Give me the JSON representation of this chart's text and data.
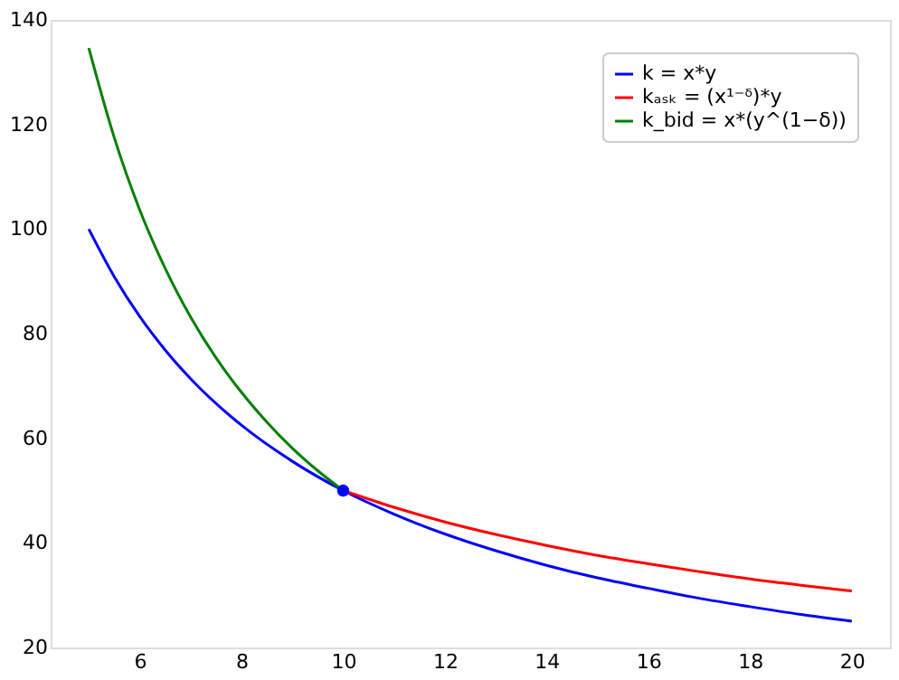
{
  "chart_data": {
    "type": "line",
    "xlim": [
      4.25,
      20.75
    ],
    "xticks": [
      6,
      8,
      10,
      12,
      14,
      16,
      18,
      20
    ],
    "ylim": [
      20,
      140
    ],
    "yticks": [
      20,
      40,
      60,
      80,
      100,
      120,
      140
    ],
    "grid": false,
    "legend": "top right",
    "line_style": "solid",
    "series": [
      {
        "name": "k = x*y",
        "color": "#0000ff",
        "x": [
          5,
          5.5,
          6,
          6.5,
          7,
          8,
          9,
          10,
          11,
          12,
          13,
          14,
          15,
          16,
          17,
          18,
          19,
          20
        ],
        "values": [
          100,
          90.9,
          83.3,
          76.9,
          71.4,
          62.5,
          55.6,
          50,
          45.5,
          41.7,
          38.5,
          35.7,
          33.3,
          31.3,
          29.4,
          27.8,
          26.3,
          25
        ]
      },
      {
        "name": "kₐₛₖ = (x¹⁻ᵟ)*y",
        "color": "#ff0000",
        "x": [
          10,
          11,
          12,
          13,
          14,
          15,
          16,
          17,
          18,
          19,
          20
        ],
        "values": [
          50,
          46.8,
          44.0,
          41.6,
          39.5,
          37.6,
          36.0,
          34.5,
          33.1,
          31.9,
          30.8
        ]
      },
      {
        "name": "k_bid = x*(y^(1−δ))",
        "color": "#008000",
        "x": [
          5,
          5.5,
          6,
          6.5,
          7,
          7.5,
          8,
          8.5,
          9,
          9.5,
          10
        ],
        "values": [
          134.6,
          117.5,
          103.7,
          92.5,
          83.2,
          75.4,
          68.8,
          63.1,
          58.1,
          53.8,
          50
        ]
      },
      {
        "type": "scatter",
        "marker": "circle",
        "color": "#0000ff",
        "x": [
          10
        ],
        "values": [
          50
        ]
      }
    ]
  }
}
